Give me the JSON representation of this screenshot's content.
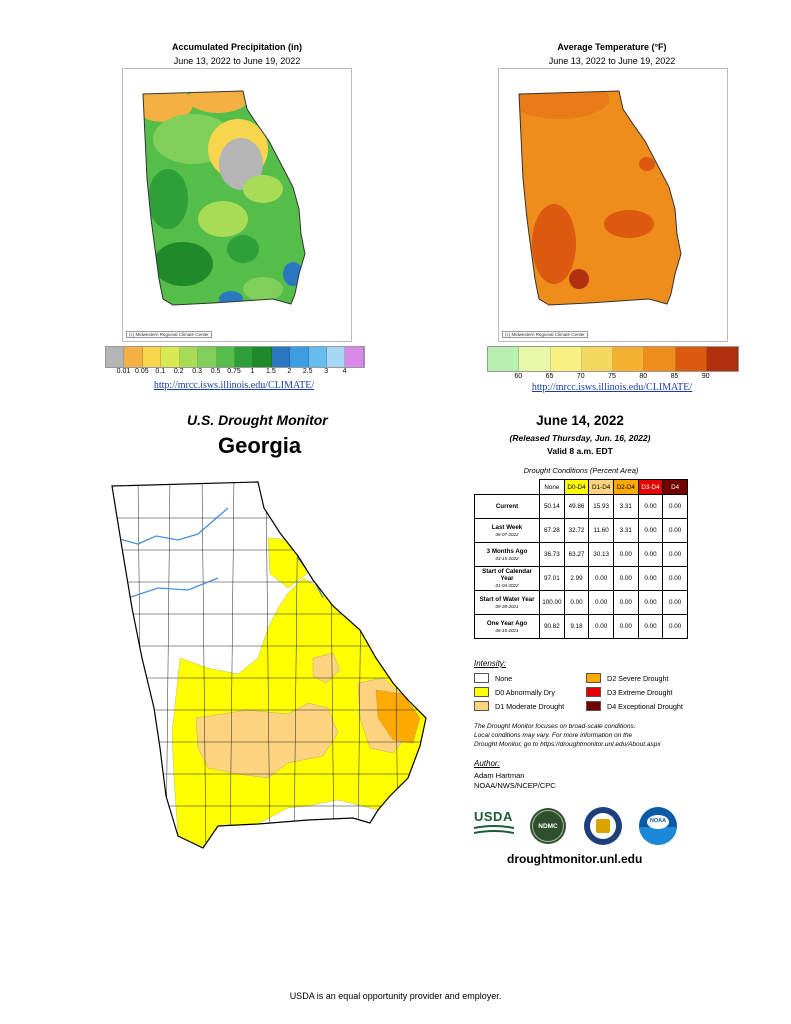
{
  "precip": {
    "title": "Accumulated Precipitation (in)",
    "subtitle": "June 13, 2022 to June 19, 2022",
    "credit": "(c) Midwestern Regional Climate Center",
    "legend_colors": [
      "#b5b5b5",
      "#f4b042",
      "#f7d64d",
      "#d8ea52",
      "#a8dc56",
      "#7fcf5a",
      "#55bd4a",
      "#2f9f3a",
      "#1f8a2a",
      "#2b78c0",
      "#3b9ee2",
      "#68bdf0",
      "#a6d8f5",
      "#d78ae8"
    ],
    "ticks": [
      "0.01",
      "0.05",
      "0.1",
      "0.2",
      "0.3",
      "0.5",
      "0.75",
      "1",
      "1.5",
      "2",
      "2.5",
      "3",
      "4"
    ],
    "link": "http://mrcc.isws.illinois.edu/CLIMATE/"
  },
  "temp": {
    "title": "Average Temperature (°F)",
    "subtitle": "June 13, 2022 to June 19, 2022",
    "credit": "(c) Midwestern Regional Climate Center",
    "legend_colors": [
      "#b8f0b0",
      "#e8f8a8",
      "#f8f080",
      "#f4d860",
      "#f4b030",
      "#ee8c1c",
      "#dc5a10",
      "#b03010"
    ],
    "ticks": [
      "60",
      "65",
      "70",
      "75",
      "80",
      "85",
      "90"
    ],
    "link": "http://mrcc.isws.illinois.edu/CLIMATE/"
  },
  "monitor": {
    "heading": "U.S. Drought Monitor",
    "state": "Georgia",
    "date": "June 14, 2022",
    "released": "(Released Thursday, Jun. 16, 2022)",
    "valid": "Valid 8 a.m. EDT"
  },
  "table": {
    "caption": "Drought Conditions (Percent Area)",
    "columns": [
      "None",
      "D0-D4",
      "D1-D4",
      "D2-D4",
      "D3-D4",
      "D4"
    ],
    "column_colors": [
      "#ffffff",
      "#ffff00",
      "#fcd37f",
      "#ffaa00",
      "#e60000",
      "#730000"
    ],
    "rows": [
      {
        "label": "Current",
        "sub": "",
        "values": [
          "50.14",
          "49.86",
          "15.93",
          "3.31",
          "0.00",
          "0.00"
        ]
      },
      {
        "label": "Last Week",
        "sub": "06-07-2022",
        "values": [
          "67.28",
          "32.72",
          "11.60",
          "3.31",
          "0.00",
          "0.00"
        ]
      },
      {
        "label": "3 Months Ago",
        "sub": "03-15-2022",
        "values": [
          "36.73",
          "63.27",
          "30.13",
          "0.00",
          "0.00",
          "0.00"
        ]
      },
      {
        "label": "Start of Calendar Year",
        "sub": "01-04-2022",
        "values": [
          "97.01",
          "2.99",
          "0.00",
          "0.00",
          "0.00",
          "0.00"
        ]
      },
      {
        "label": "Start of Water Year",
        "sub": "09-28-2021",
        "values": [
          "100.00",
          "0.00",
          "0.00",
          "0.00",
          "0.00",
          "0.00"
        ]
      },
      {
        "label": "One Year Ago",
        "sub": "06-15-2021",
        "values": [
          "90.82",
          "9.18",
          "0.00",
          "0.00",
          "0.00",
          "0.00"
        ]
      }
    ]
  },
  "intensity": {
    "title": "Intensity:",
    "items": [
      {
        "label": "None",
        "color": "#ffffff"
      },
      {
        "label": "D0 Abnormally Dry",
        "color": "#ffff00"
      },
      {
        "label": "D1 Moderate Drought",
        "color": "#fcd37f"
      },
      {
        "label": "D2 Severe Drought",
        "color": "#ffaa00"
      },
      {
        "label": "D3 Extreme Drought",
        "color": "#e60000"
      },
      {
        "label": "D4 Exceptional Drought",
        "color": "#730000"
      }
    ]
  },
  "note": {
    "line1": "The Drought Monitor focuses on broad-scale conditions.",
    "line2": "Local conditions may vary. For more information on the",
    "line3": "Drought Monitor, go to https://droughtmonitor.unl.edu/About.aspx"
  },
  "author": {
    "title": "Author:",
    "name": "Adam Hartman",
    "org": "NOAA/NWS/NCEP/CPC"
  },
  "logos": {
    "usda": "USDA",
    "ndmc": "NDMC",
    "noaa": "NOAA"
  },
  "site": "droughtmonitor.unl.edu",
  "footer": "USDA is an equal opportunity provider and employer."
}
